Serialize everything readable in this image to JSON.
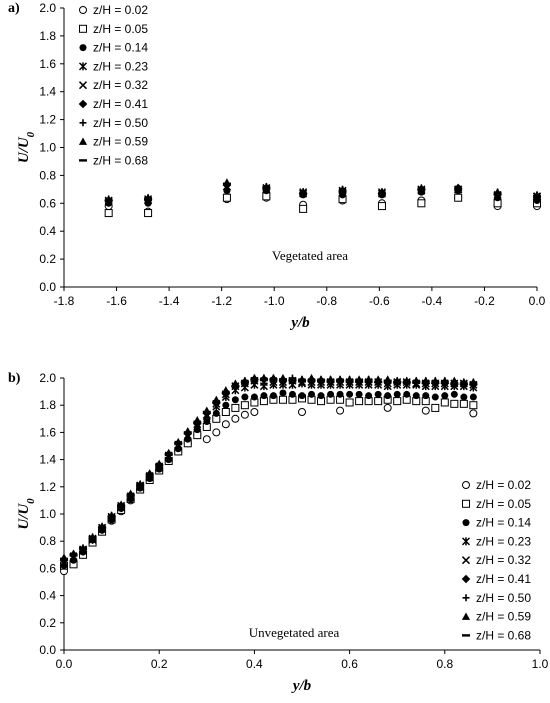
{
  "chart_data": [
    {
      "type": "scatter",
      "panel_label": "a)",
      "annotation": "Vegetated area",
      "xlabel": "y/b",
      "ylabel_main": "U/U",
      "ylabel_sub": "0",
      "xlim": [
        -1.8,
        0.0
      ],
      "ylim": [
        0.0,
        2.0
      ],
      "xticks": [
        "-1.8",
        "-1.6",
        "-1.4",
        "-1.2",
        "-1.0",
        "-0.8",
        "-0.6",
        "-0.4",
        "-0.2",
        "0.0"
      ],
      "yticks": [
        "0.0",
        "0.2",
        "0.4",
        "0.6",
        "0.8",
        "1.0",
        "1.2",
        "1.4",
        "1.6",
        "1.8",
        "2.0"
      ],
      "legend_position": "top-left",
      "x": [
        -1.63,
        -1.48,
        -1.18,
        -1.03,
        -0.89,
        -0.74,
        -0.59,
        -0.44,
        -0.3,
        -0.15,
        0.0
      ],
      "series": [
        {
          "name": "z/H = 0.02",
          "marker": "open-circle",
          "values": [
            0.58,
            0.54,
            0.63,
            0.64,
            0.59,
            0.62,
            0.6,
            0.62,
            0.64,
            0.58,
            0.58
          ]
        },
        {
          "name": "z/H = 0.05",
          "marker": "open-square",
          "values": [
            0.53,
            0.53,
            0.64,
            0.65,
            0.56,
            0.63,
            0.58,
            0.6,
            0.64,
            0.6,
            0.6
          ]
        },
        {
          "name": "z/H = 0.14",
          "marker": "filled-circle",
          "values": [
            0.6,
            0.6,
            0.69,
            0.69,
            0.66,
            0.66,
            0.66,
            0.68,
            0.69,
            0.64,
            0.62
          ]
        },
        {
          "name": "z/H = 0.23",
          "marker": "star",
          "values": [
            0.61,
            0.62,
            0.72,
            0.7,
            0.68,
            0.69,
            0.68,
            0.7,
            0.7,
            0.65,
            0.65
          ]
        },
        {
          "name": "z/H = 0.32",
          "marker": "x",
          "values": [
            0.62,
            0.63,
            0.72,
            0.71,
            0.67,
            0.69,
            0.67,
            0.69,
            0.7,
            0.66,
            0.65
          ]
        },
        {
          "name": "z/H = 0.41",
          "marker": "diamond",
          "values": [
            0.62,
            0.63,
            0.73,
            0.71,
            0.67,
            0.68,
            0.67,
            0.7,
            0.71,
            0.66,
            0.63
          ]
        },
        {
          "name": "z/H = 0.50",
          "marker": "plus",
          "values": [
            0.63,
            0.64,
            0.74,
            0.72,
            0.68,
            0.7,
            0.68,
            0.71,
            0.71,
            0.68,
            0.66
          ]
        },
        {
          "name": "z/H = 0.59",
          "marker": "triangle",
          "values": [
            0.63,
            0.64,
            0.75,
            0.72,
            0.68,
            0.7,
            0.68,
            0.71,
            0.71,
            0.68,
            0.66
          ]
        },
        {
          "name": "z/H = 0.68",
          "marker": "dash",
          "values": [
            0.62,
            0.63,
            0.74,
            0.71,
            0.67,
            0.69,
            0.67,
            0.7,
            0.7,
            0.67,
            0.65
          ]
        }
      ]
    },
    {
      "type": "scatter",
      "panel_label": "b)",
      "annotation": "Unvegetated area",
      "xlabel": "y/b",
      "ylabel_main": "U/U",
      "ylabel_sub": "0",
      "xlim": [
        0.0,
        1.0
      ],
      "ylim": [
        0.0,
        2.0
      ],
      "xticks": [
        "0.0",
        "0.2",
        "0.4",
        "0.6",
        "0.8",
        "1.0"
      ],
      "yticks": [
        "0.0",
        "0.2",
        "0.4",
        "0.6",
        "0.8",
        "1.0",
        "1.2",
        "1.4",
        "1.6",
        "1.8",
        "2.0"
      ],
      "legend_position": "bottom-right",
      "x": [
        0.0,
        0.02,
        0.04,
        0.06,
        0.08,
        0.1,
        0.12,
        0.14,
        0.16,
        0.18,
        0.2,
        0.22,
        0.24,
        0.26,
        0.28,
        0.3,
        0.32,
        0.34,
        0.36,
        0.38,
        0.4,
        0.42,
        0.44,
        0.46,
        0.48,
        0.5,
        0.52,
        0.54,
        0.56,
        0.58,
        0.6,
        0.62,
        0.64,
        0.66,
        0.68,
        0.7,
        0.72,
        0.74,
        0.76,
        0.78,
        0.8,
        0.82,
        0.84,
        0.86
      ],
      "series": [
        {
          "name": "z/H = 0.02",
          "marker": "open-circle",
          "values": [
            0.58,
            0.64,
            0.7,
            0.8,
            0.87,
            0.95,
            1.02,
            1.1,
            1.18,
            1.25,
            1.32,
            1.39,
            1.46,
            1.52,
            1.58,
            1.55,
            1.6,
            1.66,
            1.7,
            1.73,
            1.75,
            null,
            null,
            null,
            null,
            1.75,
            null,
            null,
            null,
            1.76,
            null,
            null,
            null,
            null,
            1.78,
            null,
            null,
            null,
            1.76,
            null,
            null,
            null,
            null,
            1.74
          ]
        },
        {
          "name": "z/H = 0.05",
          "marker": "open-square",
          "values": [
            0.62,
            0.63,
            0.7,
            0.79,
            0.87,
            0.96,
            1.03,
            1.11,
            1.18,
            1.25,
            1.32,
            1.39,
            1.46,
            1.52,
            1.58,
            1.64,
            1.7,
            1.75,
            1.78,
            1.8,
            1.82,
            1.83,
            1.84,
            1.84,
            1.84,
            1.85,
            1.84,
            1.83,
            1.84,
            1.84,
            1.82,
            1.83,
            1.83,
            1.83,
            1.84,
            1.83,
            1.84,
            1.83,
            1.83,
            1.78,
            1.82,
            1.81,
            1.81,
            1.8
          ]
        },
        {
          "name": "z/H = 0.14",
          "marker": "filled-circle",
          "values": [
            0.62,
            0.66,
            0.72,
            0.81,
            0.88,
            0.96,
            1.04,
            1.11,
            1.19,
            1.26,
            1.33,
            1.4,
            1.48,
            1.55,
            1.62,
            1.68,
            1.74,
            1.8,
            1.84,
            1.86,
            1.86,
            1.87,
            1.87,
            1.89,
            1.88,
            1.87,
            1.88,
            1.87,
            1.88,
            1.88,
            1.88,
            1.88,
            1.87,
            1.88,
            1.87,
            1.88,
            1.88,
            1.87,
            1.87,
            1.86,
            1.87,
            1.88,
            1.86,
            1.86
          ]
        },
        {
          "name": "z/H = 0.23",
          "marker": "star",
          "values": [
            0.64,
            0.68,
            0.73,
            0.81,
            0.89,
            0.97,
            1.05,
            1.12,
            1.2,
            1.27,
            1.34,
            1.42,
            1.5,
            1.57,
            1.64,
            1.72,
            1.79,
            1.86,
            1.91,
            1.93,
            1.95,
            1.94,
            1.95,
            1.95,
            1.95,
            1.96,
            1.95,
            1.95,
            1.95,
            1.95,
            1.95,
            1.95,
            1.95,
            1.95,
            1.94,
            1.95,
            1.95,
            1.95,
            1.94,
            1.94,
            1.94,
            1.94,
            1.94,
            1.93
          ]
        },
        {
          "name": "z/H = 0.32",
          "marker": "x",
          "values": [
            0.65,
            0.69,
            0.74,
            0.82,
            0.9,
            0.98,
            1.06,
            1.13,
            1.21,
            1.28,
            1.35,
            1.43,
            1.51,
            1.58,
            1.66,
            1.73,
            1.81,
            1.88,
            1.94,
            1.96,
            1.98,
            1.97,
            1.97,
            1.97,
            1.98,
            1.97,
            1.97,
            1.97,
            1.97,
            1.97,
            1.97,
            1.97,
            1.97,
            1.97,
            1.96,
            1.97,
            1.97,
            1.96,
            1.96,
            1.96,
            1.96,
            1.96,
            1.96,
            1.95
          ]
        },
        {
          "name": "z/H = 0.41",
          "marker": "diamond",
          "values": [
            0.66,
            0.7,
            0.74,
            0.82,
            0.9,
            0.98,
            1.06,
            1.14,
            1.21,
            1.29,
            1.36,
            1.44,
            1.52,
            1.59,
            1.67,
            1.74,
            1.82,
            1.89,
            1.94,
            1.97,
            1.99,
            1.99,
            1.99,
            1.98,
            1.98,
            1.98,
            1.98,
            1.98,
            1.97,
            1.98,
            1.97,
            1.97,
            1.97,
            1.97,
            1.97,
            1.97,
            1.97,
            1.97,
            1.96,
            1.96,
            1.96,
            1.95,
            1.95,
            1.95
          ]
        },
        {
          "name": "z/H = 0.50",
          "marker": "plus",
          "values": [
            0.67,
            0.7,
            0.75,
            0.83,
            0.9,
            0.99,
            1.06,
            1.14,
            1.22,
            1.29,
            1.36,
            1.44,
            1.52,
            1.6,
            1.68,
            1.75,
            1.83,
            1.9,
            1.95,
            1.98,
            2.0,
            2.0,
            2.0,
            1.99,
            2.0,
            1.99,
            1.99,
            1.99,
            1.99,
            1.99,
            1.99,
            1.98,
            1.99,
            1.98,
            1.98,
            1.98,
            1.98,
            1.98,
            1.98,
            1.98,
            1.98,
            1.97,
            1.97,
            1.97
          ]
        },
        {
          "name": "z/H = 0.59",
          "marker": "triangle",
          "values": [
            0.68,
            0.71,
            0.75,
            0.83,
            0.91,
            0.99,
            1.07,
            1.15,
            1.22,
            1.3,
            1.37,
            1.45,
            1.53,
            1.61,
            1.69,
            1.76,
            1.84,
            1.91,
            1.96,
            1.98,
            2.0,
            2.0,
            2.0,
            2.0,
            1.99,
            1.99,
            2.0,
            1.99,
            1.99,
            1.99,
            1.99,
            1.99,
            1.99,
            1.99,
            1.99,
            1.98,
            1.98,
            1.98,
            1.98,
            1.98,
            1.98,
            1.98,
            1.97,
            1.97
          ]
        },
        {
          "name": "z/H = 0.68",
          "marker": "dash",
          "values": [
            0.67,
            0.7,
            0.75,
            0.83,
            0.9,
            0.98,
            1.06,
            1.14,
            1.22,
            1.29,
            1.36,
            1.44,
            1.52,
            1.6,
            1.67,
            1.75,
            1.82,
            1.89,
            1.94,
            1.97,
            1.99,
            1.99,
            1.99,
            1.99,
            1.99,
            1.98,
            1.98,
            1.98,
            1.98,
            1.98,
            1.98,
            1.98,
            1.98,
            1.97,
            1.98,
            1.97,
            1.97,
            1.97,
            1.97,
            1.97,
            1.97,
            1.96,
            1.96,
            1.96
          ]
        }
      ]
    }
  ]
}
